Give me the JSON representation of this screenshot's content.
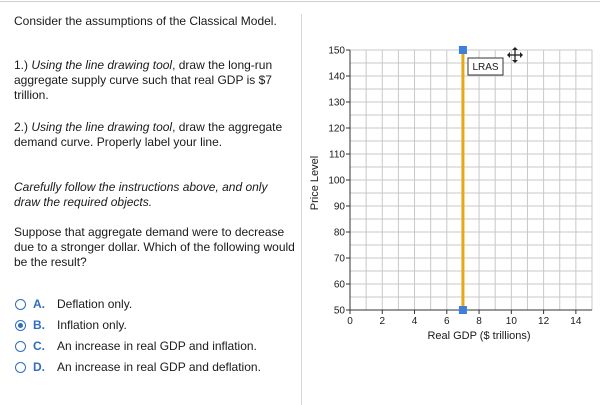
{
  "question": {
    "intro": "Consider the assumptions of the Classical Model.",
    "step1_prefix": "1.) ",
    "step1_italic": "Using the line drawing tool",
    "step1_rest": ", draw the long-run aggregate supply curve such that real GDP is $7 trillion.",
    "step2_prefix": "2.) ",
    "step2_italic": "Using the line drawing tool",
    "step2_rest": ", draw the aggregate demand curve. Properly label your line.",
    "instructions": "Carefully follow the instructions above, and only draw the required objects.",
    "prompt": "Suppose that aggregate demand were to decrease due to a stronger dollar. Which of the following would be the result?"
  },
  "options": [
    {
      "letter": "A.",
      "text": "Deflation only.",
      "selected": false
    },
    {
      "letter": "B.",
      "text": "Inflation only.",
      "selected": true
    },
    {
      "letter": "C.",
      "text": "An increase in real GDP and inflation.",
      "selected": false
    },
    {
      "letter": "D.",
      "text": "An increase in real GDP and deflation.",
      "selected": false
    }
  ],
  "graph": {
    "ylabel": "Price Level",
    "xlabel": "Real GDP ($ trillions)",
    "y_ticks": [
      "50",
      "60",
      "70",
      "80",
      "90",
      "100",
      "110",
      "120",
      "130",
      "140",
      "150"
    ],
    "x_ticks": [
      "0",
      "2",
      "4",
      "6",
      "8",
      "10",
      "12",
      "14"
    ],
    "line_label": "LRAS",
    "colors": {
      "line": "#e6a817",
      "endpoint": "#3d7fd9",
      "grid": "#c8c8c8",
      "option_accent": "#2f6dbf"
    },
    "move_icon": "move-cross-icon"
  },
  "chart_data": {
    "type": "line",
    "x_range": [
      0,
      15
    ],
    "y_range": [
      50,
      150
    ],
    "grid": true,
    "series": [
      {
        "name": "LRAS",
        "points": [
          [
            7,
            50
          ],
          [
            7,
            150
          ]
        ]
      }
    ]
  }
}
